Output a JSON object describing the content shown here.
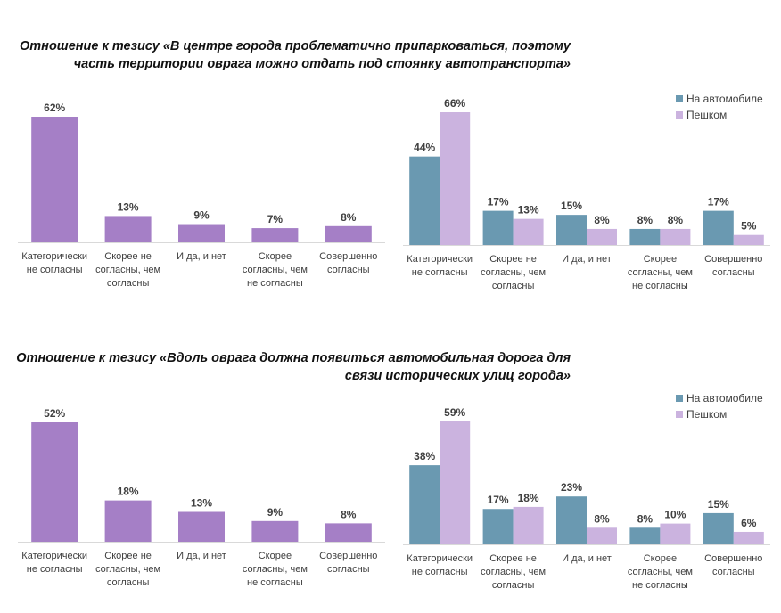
{
  "sections": [
    {
      "title_line1": "Отношение к тезису «В центре города проблематично припарковаться, поэтому",
      "title_line2": "часть территории оврага можно отдать под стоянку автотранспорта»"
    },
    {
      "title_line1": "Отношение к тезису «Вдоль оврага должна появиться автомобильная дорога для",
      "title_line2": "связи исторических улиц города»"
    }
  ],
  "chart_data": [
    {
      "type": "bar",
      "categories": [
        [
          "Категорически",
          "не согласны"
        ],
        [
          "Скорее не",
          "согласны, чем",
          "согласны"
        ],
        [
          "И да, и нет"
        ],
        [
          "Скорее",
          "согласны, чем",
          "не согласны"
        ],
        [
          "Совершенно",
          "согласны"
        ]
      ],
      "values": [
        62,
        13,
        9,
        7,
        8
      ],
      "value_labels": [
        "62%",
        "13%",
        "9%",
        "7%",
        "8%"
      ],
      "colors": [
        "#a57fc6"
      ],
      "ylim": [
        0,
        62
      ]
    },
    {
      "type": "bar",
      "categories": [
        [
          "Категорически",
          "не согласны"
        ],
        [
          "Скорее не",
          "согласны, чем",
          "согласны"
        ],
        [
          "И да, и нет"
        ],
        [
          "Скорее",
          "согласны, чем",
          "не согласны"
        ],
        [
          "Совершенно",
          "согласны"
        ]
      ],
      "series": [
        {
          "name": "На автомобиле",
          "values": [
            44,
            17,
            15,
            8,
            17
          ],
          "value_labels": [
            "44%",
            "17%",
            "15%",
            "8%",
            "17%"
          ],
          "color": "#6a99b1"
        },
        {
          "name": "Пешком",
          "values": [
            66,
            13,
            8,
            8,
            5
          ],
          "value_labels": [
            "66%",
            "13%",
            "8%",
            "8%",
            "5%"
          ],
          "color": "#cbb3df"
        }
      ],
      "legend": "top-right",
      "ylim": [
        0,
        66
      ]
    },
    {
      "type": "bar",
      "categories": [
        [
          "Категорически",
          "не согласны"
        ],
        [
          "Скорее не",
          "согласны, чем",
          "согласны"
        ],
        [
          "И да, и нет"
        ],
        [
          "Скорее",
          "согласны, чем",
          "не согласны"
        ],
        [
          "Совершенно",
          "согласны"
        ]
      ],
      "values": [
        52,
        18,
        13,
        9,
        8
      ],
      "value_labels": [
        "52%",
        "18%",
        "13%",
        "9%",
        "8%"
      ],
      "colors": [
        "#a57fc6"
      ],
      "ylim": [
        0,
        52
      ]
    },
    {
      "type": "bar",
      "categories": [
        [
          "Категорически",
          "не согласны"
        ],
        [
          "Скорее не",
          "согласны, чем",
          "согласны"
        ],
        [
          "И да, и нет"
        ],
        [
          "Скорее",
          "согласны, чем",
          "не согласны"
        ],
        [
          "Совершенно",
          "согласны"
        ]
      ],
      "series": [
        {
          "name": "На автомобиле",
          "values": [
            38,
            17,
            23,
            8,
            15
          ],
          "value_labels": [
            "38%",
            "17%",
            "23%",
            "8%",
            "15%"
          ],
          "color": "#6a99b1"
        },
        {
          "name": "Пешком",
          "values": [
            59,
            18,
            8,
            10,
            6
          ],
          "value_labels": [
            "59%",
            "18%",
            "8%",
            "10%",
            "6%"
          ],
          "color": "#cbb3df"
        }
      ],
      "legend": "top-right",
      "ylim": [
        0,
        59
      ]
    }
  ]
}
